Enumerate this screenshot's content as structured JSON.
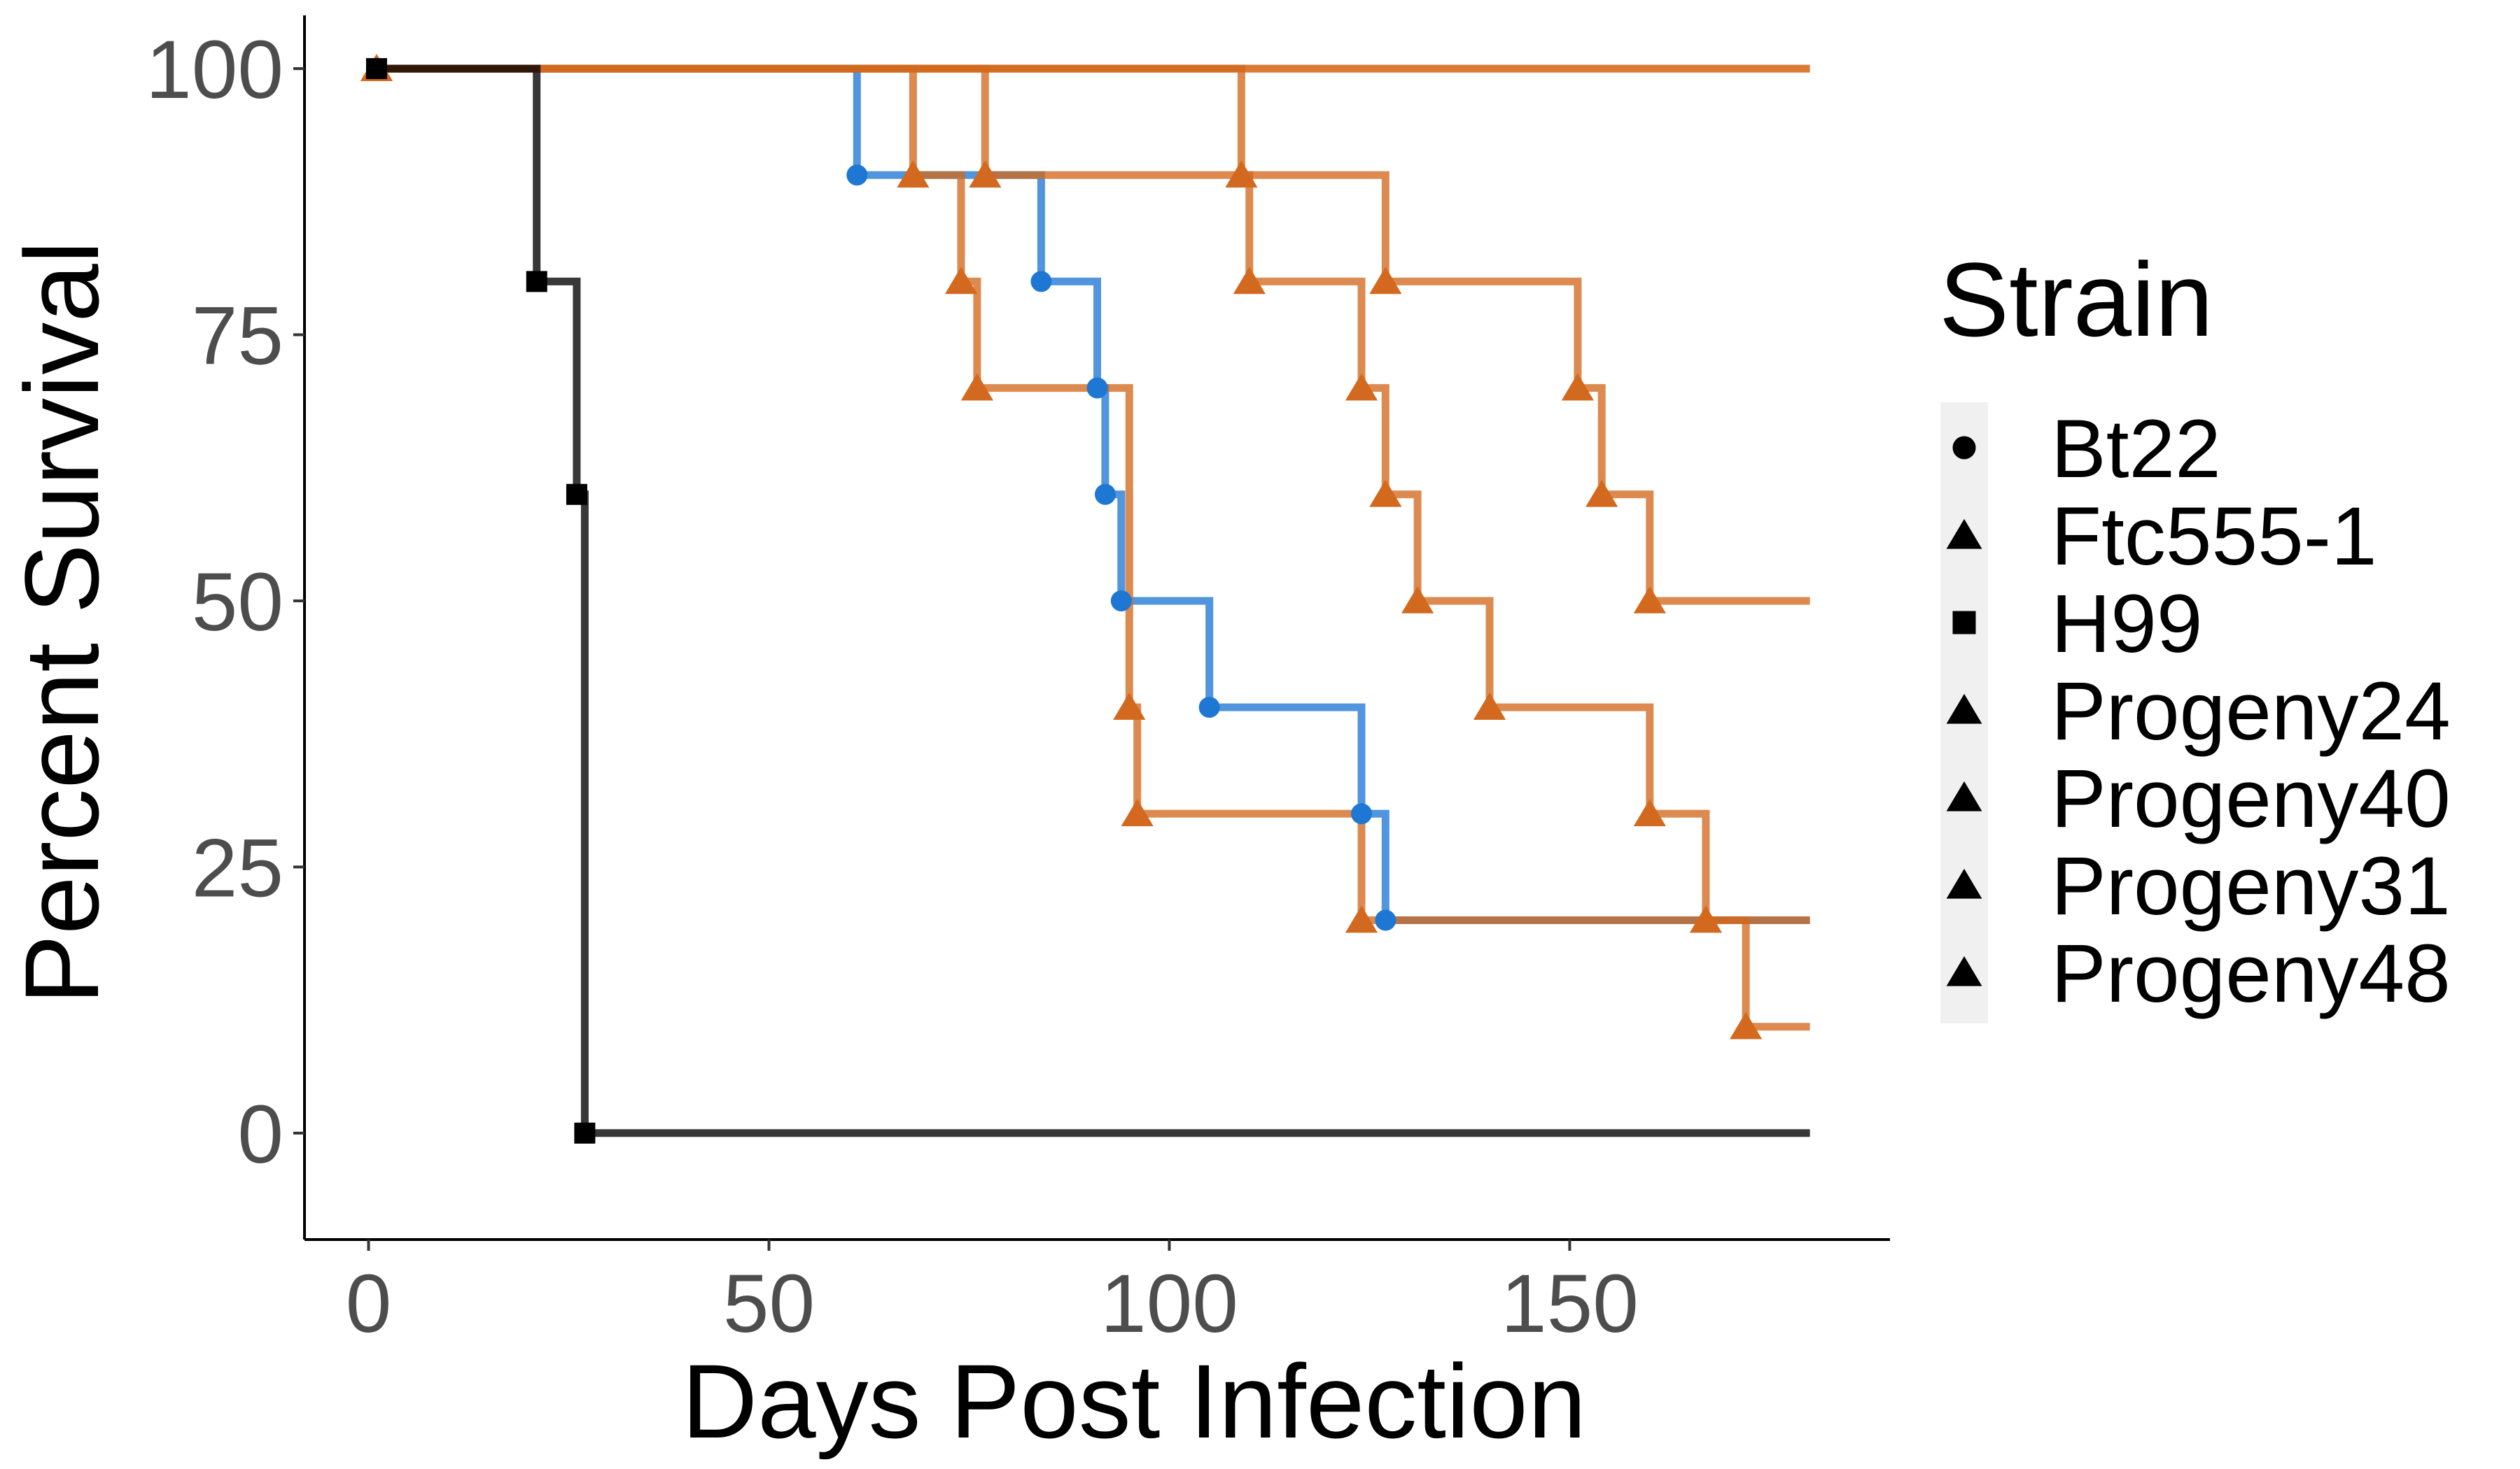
{
  "chart_data": {
    "type": "line",
    "subtype": "kaplan-meier step survival curve",
    "title": "",
    "xlabel": "Days Post Infection",
    "ylabel": "Percent Survival",
    "xlim": [
      -8,
      190
    ],
    "ylim": [
      -10,
      105
    ],
    "x_ticks": [
      0,
      50,
      100,
      150
    ],
    "y_ticks": [
      0,
      25,
      50,
      75,
      100
    ],
    "grid": false,
    "legend": {
      "title": "Strain",
      "position": "right",
      "entries": [
        {
          "label": "Bt22",
          "shape": "circle"
        },
        {
          "label": "Ftc555-1",
          "shape": "triangle"
        },
        {
          "label": "H99",
          "shape": "square"
        },
        {
          "label": "Progeny24",
          "shape": "triangle"
        },
        {
          "label": "Progeny40",
          "shape": "triangle"
        },
        {
          "label": "Progeny31",
          "shape": "triangle"
        },
        {
          "label": "Progeny48",
          "shape": "triangle"
        }
      ]
    },
    "series": [
      {
        "name": "Bt22",
        "color": "#1f77d4",
        "shape": "circle",
        "steps": [
          [
            0,
            100
          ],
          [
            61,
            90
          ],
          [
            84,
            80
          ],
          [
            91,
            70
          ],
          [
            92,
            60
          ],
          [
            94,
            50
          ],
          [
            105,
            40
          ],
          [
            124,
            30
          ],
          [
            127,
            20
          ],
          [
            180,
            20
          ]
        ],
        "markers": [
          [
            61,
            90
          ],
          [
            84,
            80
          ],
          [
            91,
            70
          ],
          [
            92,
            60
          ],
          [
            94,
            50
          ],
          [
            105,
            40
          ],
          [
            124,
            30
          ],
          [
            127,
            20
          ]
        ]
      },
      {
        "name": "Ftc555-1",
        "color": "#f4a261",
        "shape": "triangle",
        "steps": [
          [
            0,
            100
          ],
          [
            180,
            100
          ]
        ],
        "markers": [
          [
            1,
            100
          ]
        ]
      },
      {
        "name": "H99",
        "color": "#000000",
        "shape": "square",
        "steps": [
          [
            0,
            100
          ],
          [
            21,
            80
          ],
          [
            26,
            60
          ],
          [
            27,
            0
          ],
          [
            180,
            0
          ]
        ],
        "markers": [
          [
            1,
            100
          ],
          [
            21,
            80
          ],
          [
            26,
            60
          ],
          [
            27,
            0
          ]
        ]
      },
      {
        "name": "Progeny24",
        "color": "#d2691e",
        "shape": "triangle",
        "steps": [
          [
            0,
            100
          ],
          [
            68,
            90
          ],
          [
            74,
            80
          ],
          [
            76,
            70
          ],
          [
            95,
            40
          ],
          [
            96,
            30
          ],
          [
            124,
            20
          ],
          [
            180,
            20
          ]
        ],
        "markers": [
          [
            68,
            90
          ],
          [
            74,
            80
          ],
          [
            76,
            70
          ],
          [
            95,
            40
          ],
          [
            96,
            30
          ],
          [
            124,
            20
          ]
        ]
      },
      {
        "name": "Progeny40",
        "color": "#d2691e",
        "shape": "triangle",
        "steps": [
          [
            0,
            100
          ],
          [
            109,
            90
          ],
          [
            110,
            80
          ],
          [
            124,
            70
          ],
          [
            127,
            60
          ],
          [
            131,
            50
          ],
          [
            140,
            40
          ],
          [
            160,
            30
          ],
          [
            167,
            20
          ],
          [
            172,
            10
          ],
          [
            180,
            10
          ]
        ],
        "markers": [
          [
            109,
            90
          ],
          [
            110,
            80
          ],
          [
            124,
            70
          ],
          [
            127,
            60
          ],
          [
            131,
            50
          ],
          [
            140,
            40
          ],
          [
            160,
            30
          ],
          [
            167,
            20
          ],
          [
            172,
            10
          ]
        ]
      },
      {
        "name": "Progeny31",
        "color": "#d2691e",
        "shape": "triangle",
        "steps": [
          [
            0,
            100
          ],
          [
            77,
            90
          ],
          [
            127,
            80
          ],
          [
            151,
            70
          ],
          [
            154,
            60
          ],
          [
            160,
            50
          ],
          [
            180,
            50
          ]
        ],
        "markers": [
          [
            77,
            90
          ],
          [
            127,
            80
          ],
          [
            151,
            70
          ],
          [
            154,
            60
          ],
          [
            160,
            50
          ]
        ]
      },
      {
        "name": "Progeny48",
        "color": "#d2691e",
        "shape": "triangle",
        "steps": [
          [
            0,
            100
          ],
          [
            180,
            100
          ]
        ],
        "markers": [
          [
            1,
            100
          ]
        ]
      }
    ]
  }
}
